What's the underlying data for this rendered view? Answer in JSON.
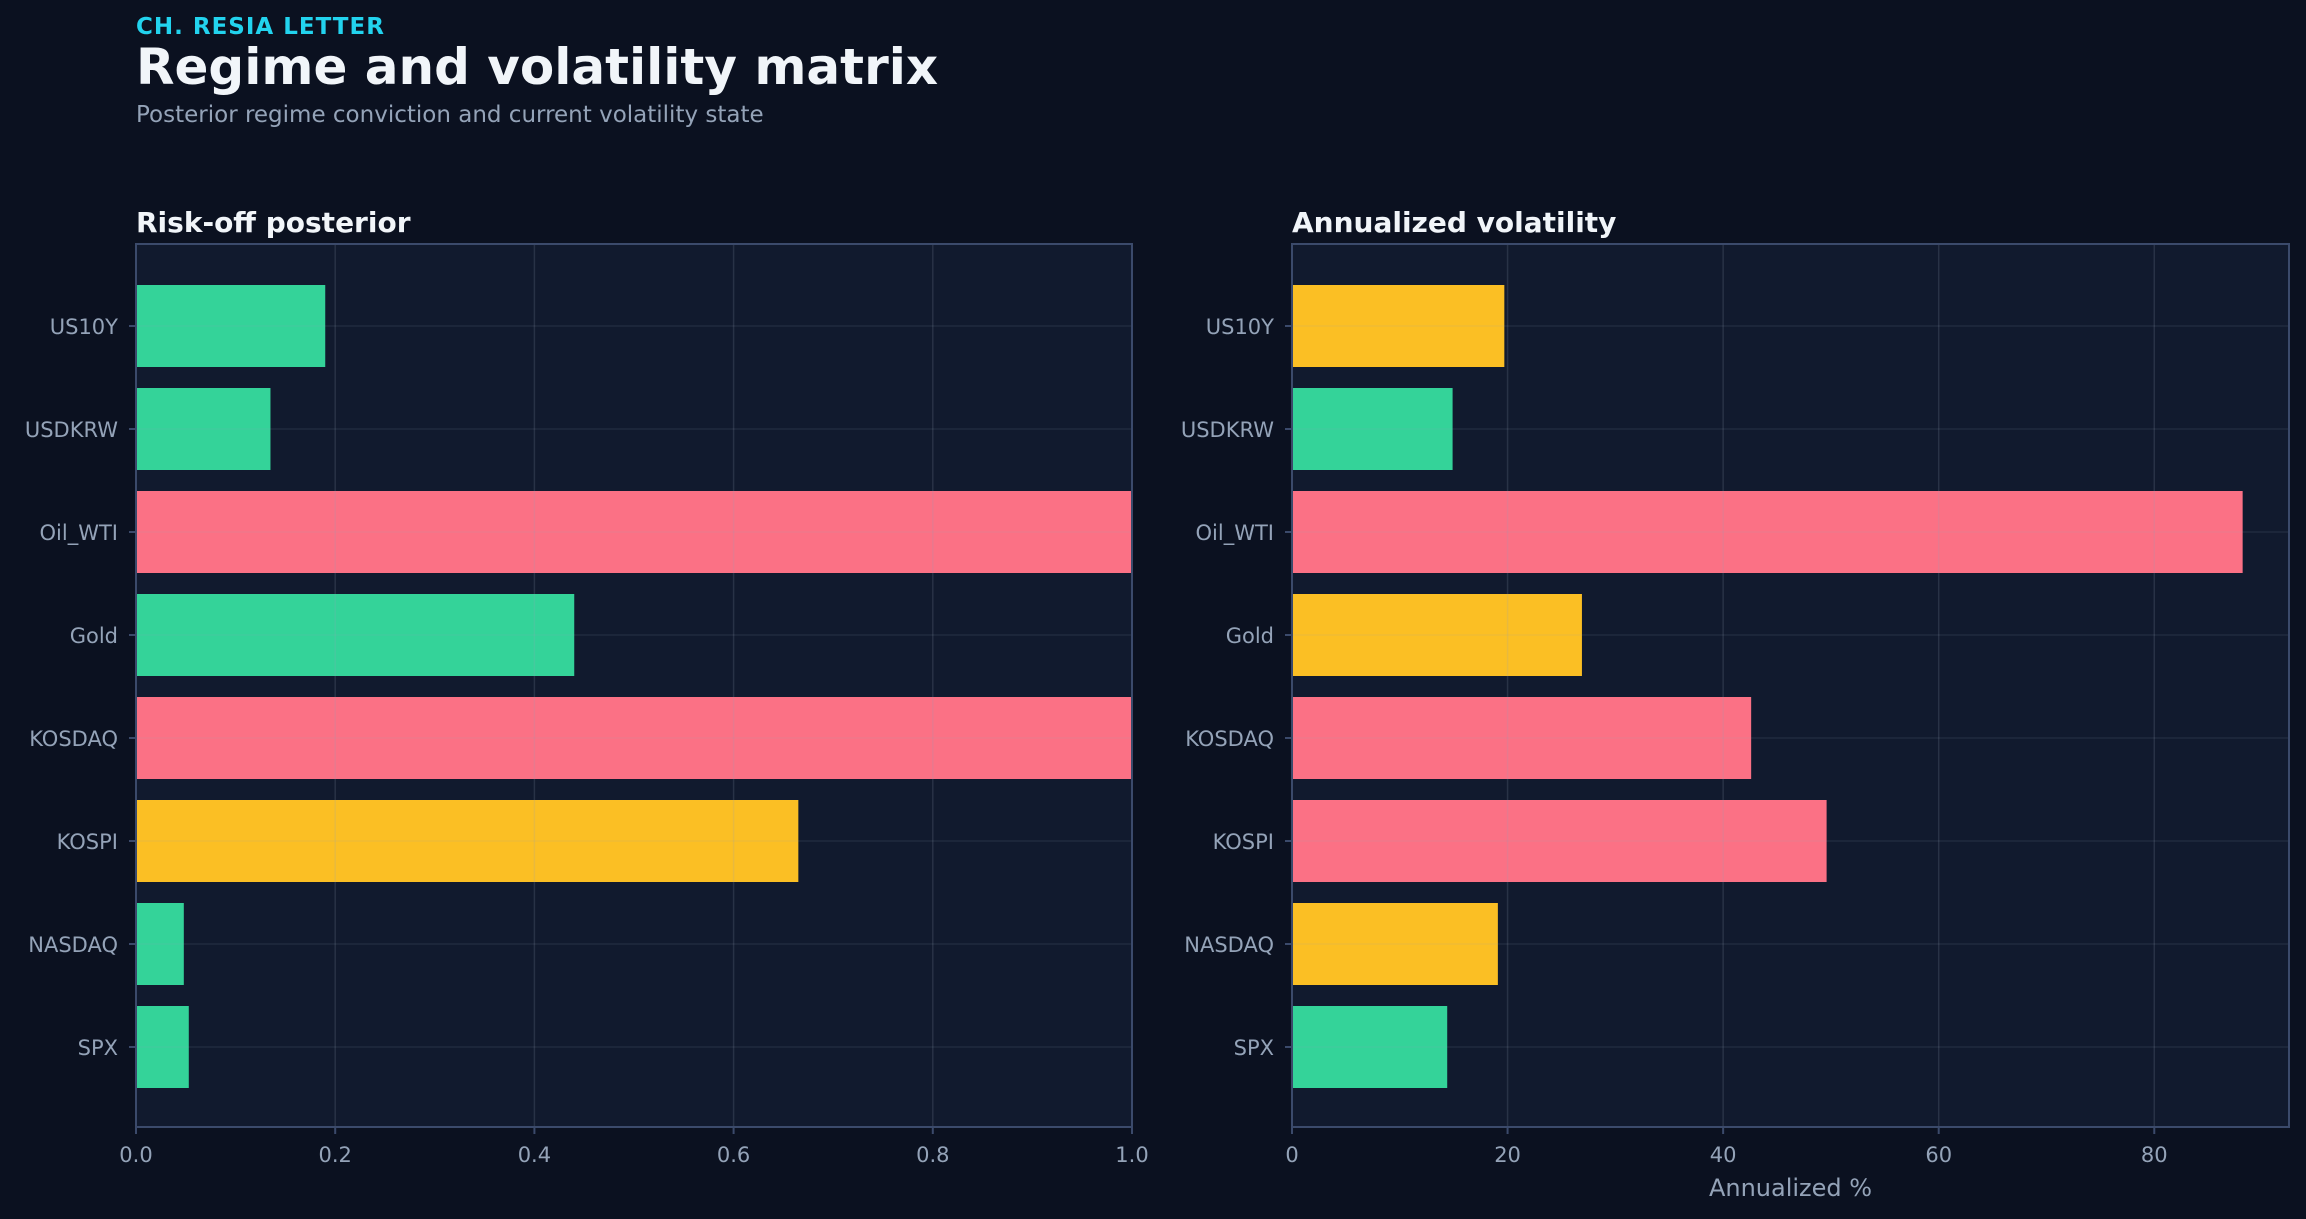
{
  "header": {
    "kicker": "CH. RESIA LETTER",
    "title": "Regime and volatility matrix",
    "subtitle": "Posterior regime conviction and current volatility state"
  },
  "colors": {
    "green": "#34d399",
    "red": "#fb7185",
    "yellow": "#fbbf24",
    "background": "#0b1120",
    "panel": "#111a2e",
    "text": "#94a3b8",
    "title": "#f1f5f9",
    "accent": "#22d3ee"
  },
  "chart_data": [
    {
      "type": "bar",
      "orientation": "horizontal",
      "title": "Risk-off posterior",
      "xlabel": "",
      "ylabel": "",
      "categories": [
        "US10Y",
        "USDKRW",
        "Oil_WTI",
        "Gold",
        "KOSDAQ",
        "KOSPI",
        "NASDAQ",
        "SPX"
      ],
      "values": [
        0.19,
        0.135,
        1.0,
        0.44,
        1.0,
        0.665,
        0.048,
        0.053
      ],
      "bar_colors": [
        "green",
        "green",
        "red",
        "green",
        "red",
        "yellow",
        "green",
        "green"
      ],
      "xlim": [
        0,
        1.0
      ],
      "xticks": [
        "0.0",
        "0.2",
        "0.4",
        "0.6",
        "0.8",
        "1.0"
      ],
      "grid": true
    },
    {
      "type": "bar",
      "orientation": "horizontal",
      "title": "Annualized volatility",
      "xlabel": "Annualized %",
      "ylabel": "",
      "categories": [
        "US10Y",
        "USDKRW",
        "Oil_WTI",
        "Gold",
        "KOSDAQ",
        "KOSPI",
        "NASDAQ",
        "SPX"
      ],
      "values": [
        19.7,
        14.9,
        88.2,
        26.9,
        42.6,
        49.6,
        19.1,
        14.4
      ],
      "bar_colors": [
        "yellow",
        "green",
        "red",
        "yellow",
        "red",
        "red",
        "yellow",
        "green"
      ],
      "xlim": [
        0,
        92.5
      ],
      "xticks": [
        "0",
        "20",
        "40",
        "60",
        "80"
      ],
      "grid": true
    }
  ]
}
